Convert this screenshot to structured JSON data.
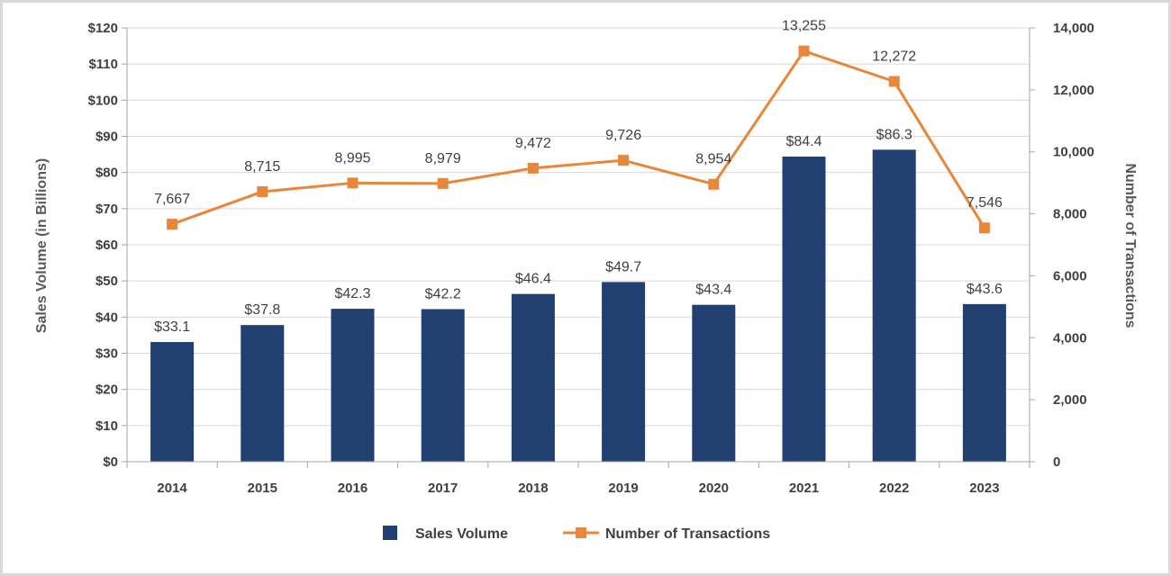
{
  "chart_data": {
    "type": "bar",
    "categories": [
      "2014",
      "2015",
      "2016",
      "2017",
      "2018",
      "2019",
      "2020",
      "2021",
      "2022",
      "2023"
    ],
    "series": [
      {
        "name": "Sales Volume",
        "type": "bar",
        "axis": "left",
        "color": "#223f72",
        "values": [
          33.1,
          37.8,
          42.3,
          42.2,
          46.4,
          49.7,
          43.4,
          84.4,
          86.3,
          43.6
        ],
        "labels": [
          "$33.1",
          "$37.8",
          "$42.3",
          "$42.2",
          "$46.4",
          "$49.7",
          "$43.4",
          "$84.4",
          "$86.3",
          "$43.6"
        ]
      },
      {
        "name": "Number of Transactions",
        "type": "line",
        "axis": "right",
        "color": "#e8873a",
        "values": [
          7667,
          8715,
          8995,
          8979,
          9472,
          9726,
          8954,
          13255,
          12272,
          7546
        ],
        "labels": [
          "7,667",
          "8,715",
          "8,995",
          "8,979",
          "9,472",
          "9,726",
          "8,954",
          "13,255",
          "12,272",
          "7,546"
        ]
      }
    ],
    "y_left": {
      "label": "Sales Volume (in Billions)",
      "range": [
        0,
        120
      ],
      "ticks": [
        0,
        10,
        20,
        30,
        40,
        50,
        60,
        70,
        80,
        90,
        100,
        110,
        120
      ],
      "tick_labels": [
        "$0",
        "$10",
        "$20",
        "$30",
        "$40",
        "$50",
        "$60",
        "$70",
        "$80",
        "$90",
        "$100",
        "$110",
        "$120"
      ]
    },
    "y_right": {
      "label": "Number of Transactions",
      "range": [
        0,
        14000
      ],
      "ticks": [
        0,
        2000,
        4000,
        6000,
        8000,
        10000,
        12000,
        14000
      ],
      "tick_labels": [
        "0",
        "2,000",
        "4,000",
        "6,000",
        "8,000",
        "10,000",
        "12,000",
        "14,000"
      ]
    },
    "grid": true,
    "legend": {
      "position": "bottom",
      "entries": [
        "Sales Volume",
        "Number of Transactions"
      ]
    }
  }
}
